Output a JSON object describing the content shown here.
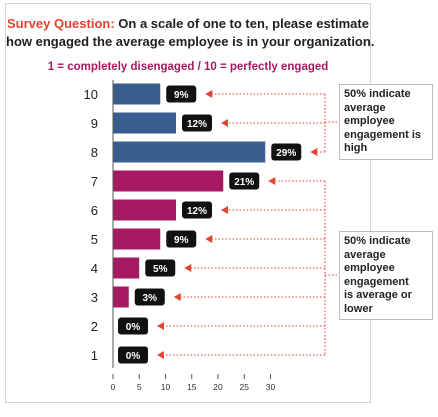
{
  "header": {
    "question_label": "Survey Question:",
    "question_line1": "On a scale of one to ten, please estimate",
    "question_line2": "how engaged the average employee is in your organization.",
    "scale_note": "1 = completely disengaged / 10 = perfectly engaged"
  },
  "callouts": {
    "top": [
      "50% indicate",
      "average",
      "employee",
      "engagement is",
      "high"
    ],
    "bottom": [
      "50% indicate",
      "average",
      "employee",
      "engagement",
      "is average or",
      "lower"
    ]
  },
  "colors": {
    "high": "#3a5d8f",
    "low": "#a51a62",
    "label_bg": "#111111",
    "arrow": "#e2452f",
    "lead_text": "#e2452f"
  },
  "chart_data": {
    "type": "bar",
    "orientation": "horizontal",
    "categories": [
      "10",
      "9",
      "8",
      "7",
      "6",
      "5",
      "4",
      "3",
      "2",
      "1"
    ],
    "values": [
      9,
      12,
      29,
      21,
      12,
      9,
      5,
      3,
      0,
      0
    ],
    "data_labels": [
      "9%",
      "12%",
      "29%",
      "21%",
      "12%",
      "9%",
      "5%",
      "3%",
      "0%",
      "0%"
    ],
    "bar_colors": [
      "#3a5d8f",
      "#3a5d8f",
      "#3a5d8f",
      "#a51a62",
      "#a51a62",
      "#a51a62",
      "#a51a62",
      "#a51a62",
      "#a51a62",
      "#a51a62"
    ],
    "xlim": [
      0,
      30
    ],
    "xticks": [
      0,
      5,
      10,
      15,
      20,
      25,
      30
    ],
    "title": "",
    "xlabel": "",
    "ylabel": ""
  }
}
